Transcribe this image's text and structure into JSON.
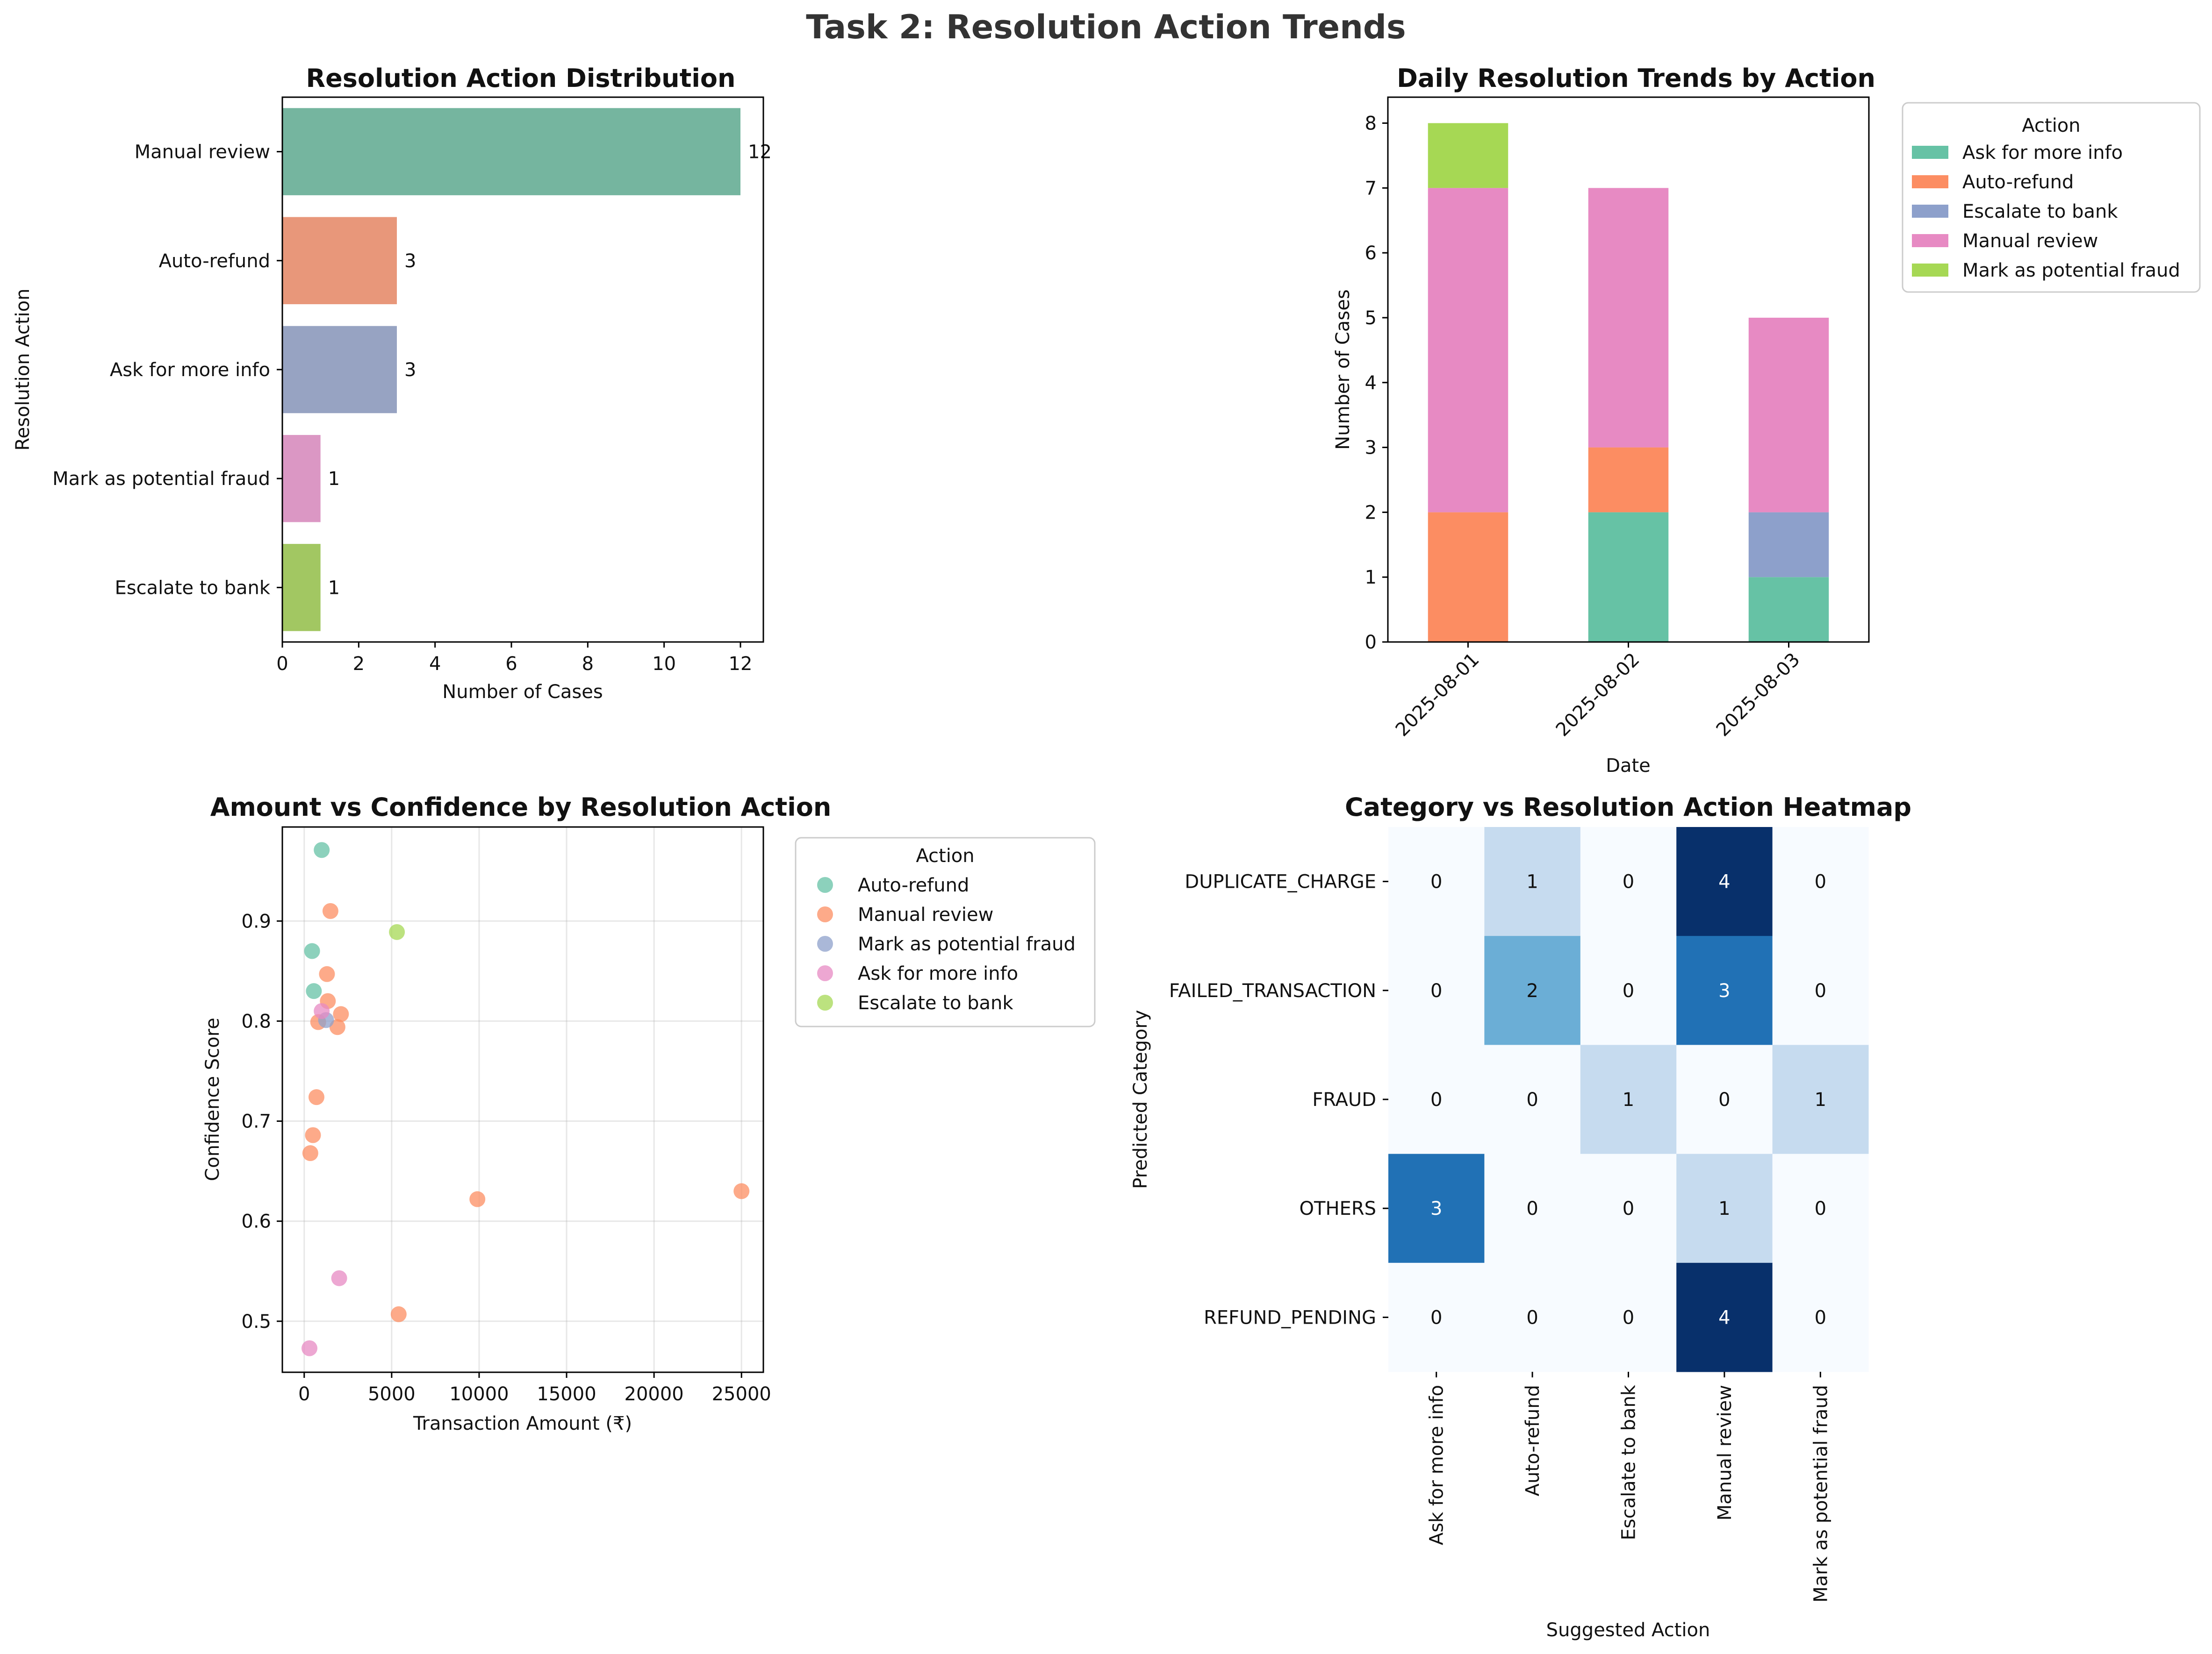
{
  "figure": {
    "title": "Task 2: Resolution Action Trends"
  },
  "chart_data": [
    {
      "type": "bar",
      "orientation": "horizontal",
      "title": "Resolution Action Distribution",
      "xlabel": "Number of Cases",
      "ylabel": "Resolution Action",
      "categories": [
        "Manual review",
        "Auto-refund",
        "Ask for more info",
        "Mark as potential fraud",
        "Escalate to bank"
      ],
      "values": [
        12,
        3,
        3,
        1,
        1
      ],
      "colors": [
        "#75b59f",
        "#e8977a",
        "#97a3c2",
        "#db97c4",
        "#a2c762"
      ],
      "xlim": [
        0,
        12.6
      ],
      "xticks": [
        0,
        2,
        4,
        6,
        8,
        10,
        12
      ],
      "grid": false
    },
    {
      "type": "bar",
      "stacked": true,
      "title": "Daily Resolution Trends by Action",
      "xlabel": "Date",
      "ylabel": "Number of Cases",
      "categories": [
        "2025-08-01",
        "2025-08-02",
        "2025-08-03"
      ],
      "series": [
        {
          "name": "Ask for more info",
          "values": [
            0,
            2,
            1
          ],
          "color": "#66c2a5"
        },
        {
          "name": "Auto-refund",
          "values": [
            2,
            1,
            0
          ],
          "color": "#fc8d62"
        },
        {
          "name": "Escalate to bank",
          "values": [
            0,
            0,
            1
          ],
          "color": "#8da0cb"
        },
        {
          "name": "Manual review",
          "values": [
            5,
            4,
            3
          ],
          "color": "#e78ac3"
        },
        {
          "name": "Mark as potential fraud",
          "values": [
            1,
            0,
            0
          ],
          "color": "#a6d854"
        }
      ],
      "ylim": [
        0,
        8.4
      ],
      "yticks": [
        0,
        1,
        2,
        3,
        4,
        5,
        6,
        7,
        8
      ],
      "legend": {
        "title": "Action",
        "placement": "outside-upper-right"
      },
      "grid": false
    },
    {
      "type": "scatter",
      "title": "Amount vs Confidence by Resolution Action",
      "xlabel": "Transaction Amount (₹)",
      "ylabel": "Confidence Score",
      "xlim": [
        -1250,
        26250
      ],
      "ylim": [
        0.449,
        0.994
      ],
      "xticks": [
        0,
        5000,
        10000,
        15000,
        20000,
        25000
      ],
      "yticks": [
        0.5,
        0.6,
        0.7,
        0.8,
        0.9
      ],
      "grid": true,
      "legend": {
        "title": "Action",
        "placement": "outside-upper-right"
      },
      "series": [
        {
          "name": "Auto-refund",
          "color": "#66c2a5",
          "points": [
            [
              1000,
              0.971
            ],
            [
              450,
              0.87
            ],
            [
              550,
              0.83
            ]
          ]
        },
        {
          "name": "Manual review",
          "color": "#fc8d62",
          "points": [
            [
              1500,
              0.91
            ],
            [
              1300,
              0.847
            ],
            [
              1350,
              0.82
            ],
            [
              2100,
              0.807
            ],
            [
              800,
              0.799
            ],
            [
              1900,
              0.794
            ],
            [
              700,
              0.724
            ],
            [
              500,
              0.686
            ],
            [
              350,
              0.668
            ],
            [
              9900,
              0.622
            ],
            [
              25000,
              0.63
            ],
            [
              5400,
              0.507
            ]
          ]
        },
        {
          "name": "Mark as potential fraud",
          "color": "#8da0cb",
          "points": [
            [
              1250,
              0.801
            ]
          ]
        },
        {
          "name": "Ask for more info",
          "color": "#e78ac3",
          "points": [
            [
              1000,
              0.81
            ],
            [
              2000,
              0.543
            ],
            [
              300,
              0.473
            ]
          ]
        },
        {
          "name": "Escalate to bank",
          "color": "#a6d854",
          "points": [
            [
              5300,
              0.889
            ]
          ]
        }
      ]
    },
    {
      "type": "heatmap",
      "title": "Category vs Resolution Action Heatmap",
      "xlabel": "Suggested Action",
      "ylabel": "Predicted Category",
      "rows": [
        "DUPLICATE_CHARGE",
        "FAILED_TRANSACTION",
        "FRAUD",
        "OTHERS",
        "REFUND_PENDING"
      ],
      "columns": [
        "Ask for more info",
        "Auto-refund",
        "Escalate to bank",
        "Manual review",
        "Mark as potential fraud"
      ],
      "values": [
        [
          0,
          1,
          0,
          4,
          0
        ],
        [
          0,
          2,
          0,
          3,
          0
        ],
        [
          0,
          0,
          1,
          0,
          1
        ],
        [
          3,
          0,
          0,
          1,
          0
        ],
        [
          0,
          0,
          0,
          4,
          0
        ]
      ],
      "colormap": "Blues",
      "vmin": 0,
      "vmax": 4,
      "annotated": true
    }
  ]
}
